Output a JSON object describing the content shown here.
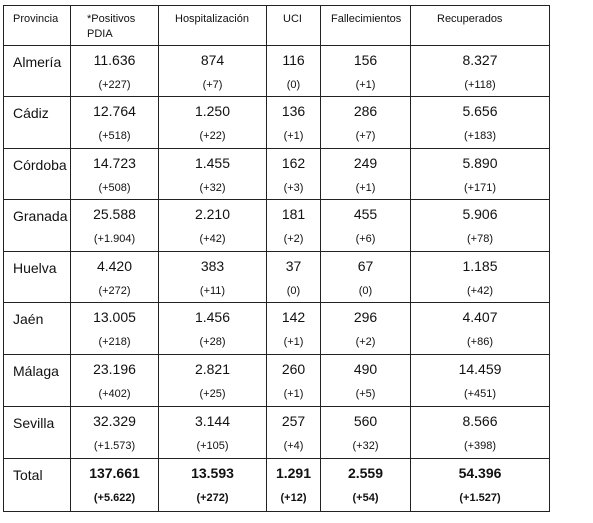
{
  "headers": [
    "Provincia",
    "*Positivos PDIA",
    "Hospitalización",
    "UCI",
    "Fallecimientos",
    "Recuperados"
  ],
  "rows": [
    {
      "provincia": "Almería",
      "cells": [
        [
          "11.636",
          "(+227)"
        ],
        [
          "874",
          "(+7)"
        ],
        [
          "116",
          "(0)"
        ],
        [
          "156",
          "(+1)"
        ],
        [
          "8.327",
          "(+118)"
        ]
      ]
    },
    {
      "provincia": "Cádiz",
      "cells": [
        [
          "12.764",
          "(+518)"
        ],
        [
          "1.250",
          "(+22)"
        ],
        [
          "136",
          "(+1)"
        ],
        [
          "286",
          "(+7)"
        ],
        [
          "5.656",
          "(+183)"
        ]
      ]
    },
    {
      "provincia": "Córdoba",
      "cells": [
        [
          "14.723",
          "(+508)"
        ],
        [
          "1.455",
          "(+32)"
        ],
        [
          "162",
          "(+3)"
        ],
        [
          "249",
          "(+1)"
        ],
        [
          "5.890",
          "(+171)"
        ]
      ]
    },
    {
      "provincia": "Granada",
      "cells": [
        [
          "25.588",
          "(+1.904)"
        ],
        [
          "2.210",
          "(+42)"
        ],
        [
          "181",
          "(+2)"
        ],
        [
          "455",
          "(+6)"
        ],
        [
          "5.906",
          "(+78)"
        ]
      ]
    },
    {
      "provincia": "Huelva",
      "cells": [
        [
          "4.420",
          "(+272)"
        ],
        [
          "383",
          "(+11)"
        ],
        [
          "37",
          "(0)"
        ],
        [
          "67",
          "(0)"
        ],
        [
          "1.185",
          "(+42)"
        ]
      ]
    },
    {
      "provincia": "Jaén",
      "cells": [
        [
          "13.005",
          "(+218)"
        ],
        [
          "1.456",
          "(+28)"
        ],
        [
          "142",
          "(+1)"
        ],
        [
          "296",
          "(+2)"
        ],
        [
          "4.407",
          "(+86)"
        ]
      ]
    },
    {
      "provincia": "Málaga",
      "cells": [
        [
          "23.196",
          "(+402)"
        ],
        [
          "2.821",
          "(+25)"
        ],
        [
          "260",
          "(+1)"
        ],
        [
          "490",
          "(+5)"
        ],
        [
          "14.459",
          "(+451)"
        ]
      ]
    },
    {
      "provincia": "Sevilla",
      "cells": [
        [
          "32.329",
          "(+1.573)"
        ],
        [
          "3.144",
          "(+105)"
        ],
        [
          "257",
          "(+4)"
        ],
        [
          "560",
          "(+32)"
        ],
        [
          "8.566",
          "(+398)"
        ]
      ]
    }
  ],
  "total": {
    "provincia": "Total",
    "cells": [
      [
        "137.661",
        "(+5.622)"
      ],
      [
        "13.593",
        "(+272)"
      ],
      [
        "1.291",
        "(+12)"
      ],
      [
        "2.559",
        "(+54)"
      ],
      [
        "54.396",
        "(+1.527)"
      ]
    ]
  }
}
